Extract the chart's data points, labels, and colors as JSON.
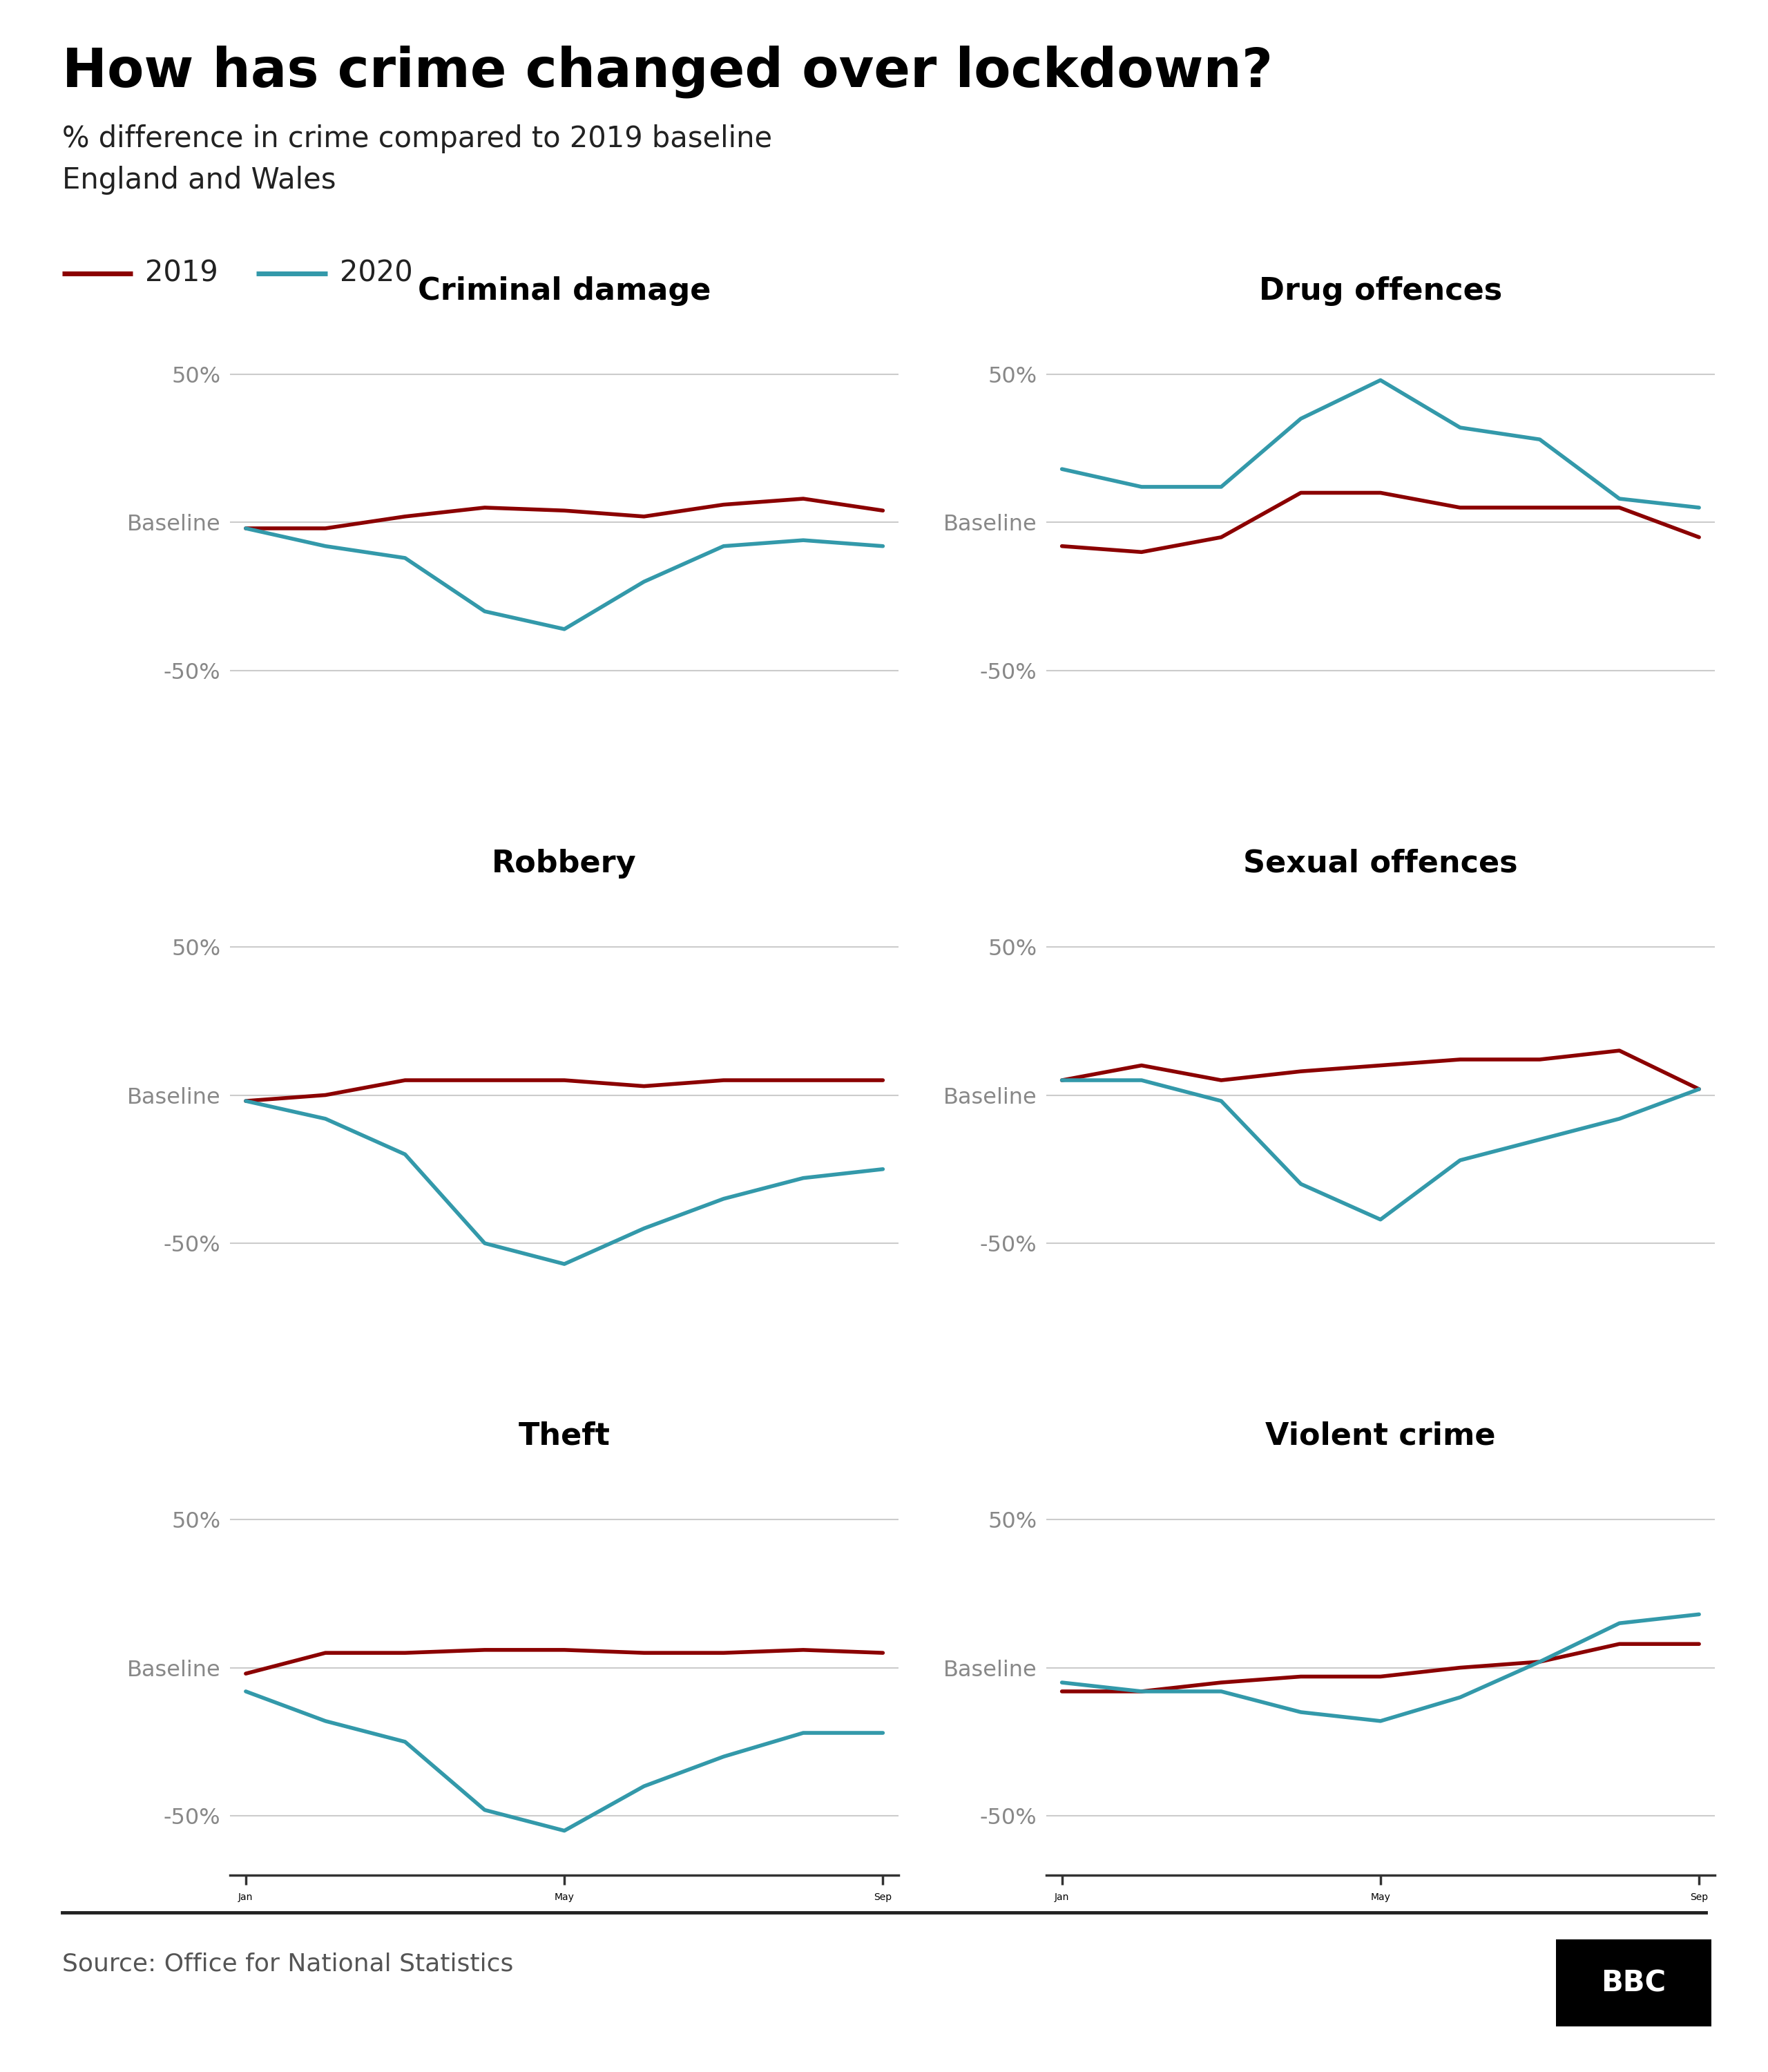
{
  "title": "How has crime changed over lockdown?",
  "subtitle1": "% difference in crime compared to 2019 baseline",
  "subtitle2": "England and Wales",
  "source": "Source: Office for National Statistics",
  "color_2019": "#8B0000",
  "color_2020": "#3399AA",
  "background": "#ffffff",
  "grid_color": "#cccccc",
  "tick_color": "#888888",
  "spine_color": "#333333",
  "linewidth": 4.0,
  "x_tick_positions": [
    0,
    4,
    8
  ],
  "x_tick_labels": [
    "Jan",
    "May",
    "Sep"
  ],
  "y_ticks": [
    -50,
    0,
    50
  ],
  "ylim": [
    -70,
    70
  ],
  "charts": [
    {
      "title": "Criminal damage",
      "data_2019": [
        -2,
        -2,
        2,
        5,
        4,
        2,
        6,
        8,
        4
      ],
      "data_2020": [
        -2,
        -8,
        -12,
        -30,
        -36,
        -20,
        -8,
        -6,
        -8
      ]
    },
    {
      "title": "Drug offences",
      "data_2019": [
        -8,
        -10,
        -5,
        10,
        10,
        5,
        5,
        5,
        -5
      ],
      "data_2020": [
        18,
        12,
        12,
        35,
        48,
        32,
        28,
        8,
        5
      ]
    },
    {
      "title": "Robbery",
      "data_2019": [
        -2,
        0,
        5,
        5,
        5,
        3,
        5,
        5,
        5
      ],
      "data_2020": [
        -2,
        -8,
        -20,
        -50,
        -57,
        -45,
        -35,
        -28,
        -25
      ]
    },
    {
      "title": "Sexual offences",
      "data_2019": [
        5,
        10,
        5,
        8,
        10,
        12,
        12,
        15,
        2
      ],
      "data_2020": [
        5,
        5,
        -2,
        -30,
        -42,
        -22,
        -15,
        -8,
        2
      ]
    },
    {
      "title": "Theft",
      "data_2019": [
        -2,
        5,
        5,
        6,
        6,
        5,
        5,
        6,
        5
      ],
      "data_2020": [
        -8,
        -18,
        -25,
        -48,
        -55,
        -40,
        -30,
        -22,
        -22
      ]
    },
    {
      "title": "Violent crime",
      "data_2019": [
        -8,
        -8,
        -5,
        -3,
        -3,
        0,
        2,
        8,
        8
      ],
      "data_2020": [
        -5,
        -8,
        -8,
        -15,
        -18,
        -10,
        2,
        15,
        18
      ]
    }
  ]
}
